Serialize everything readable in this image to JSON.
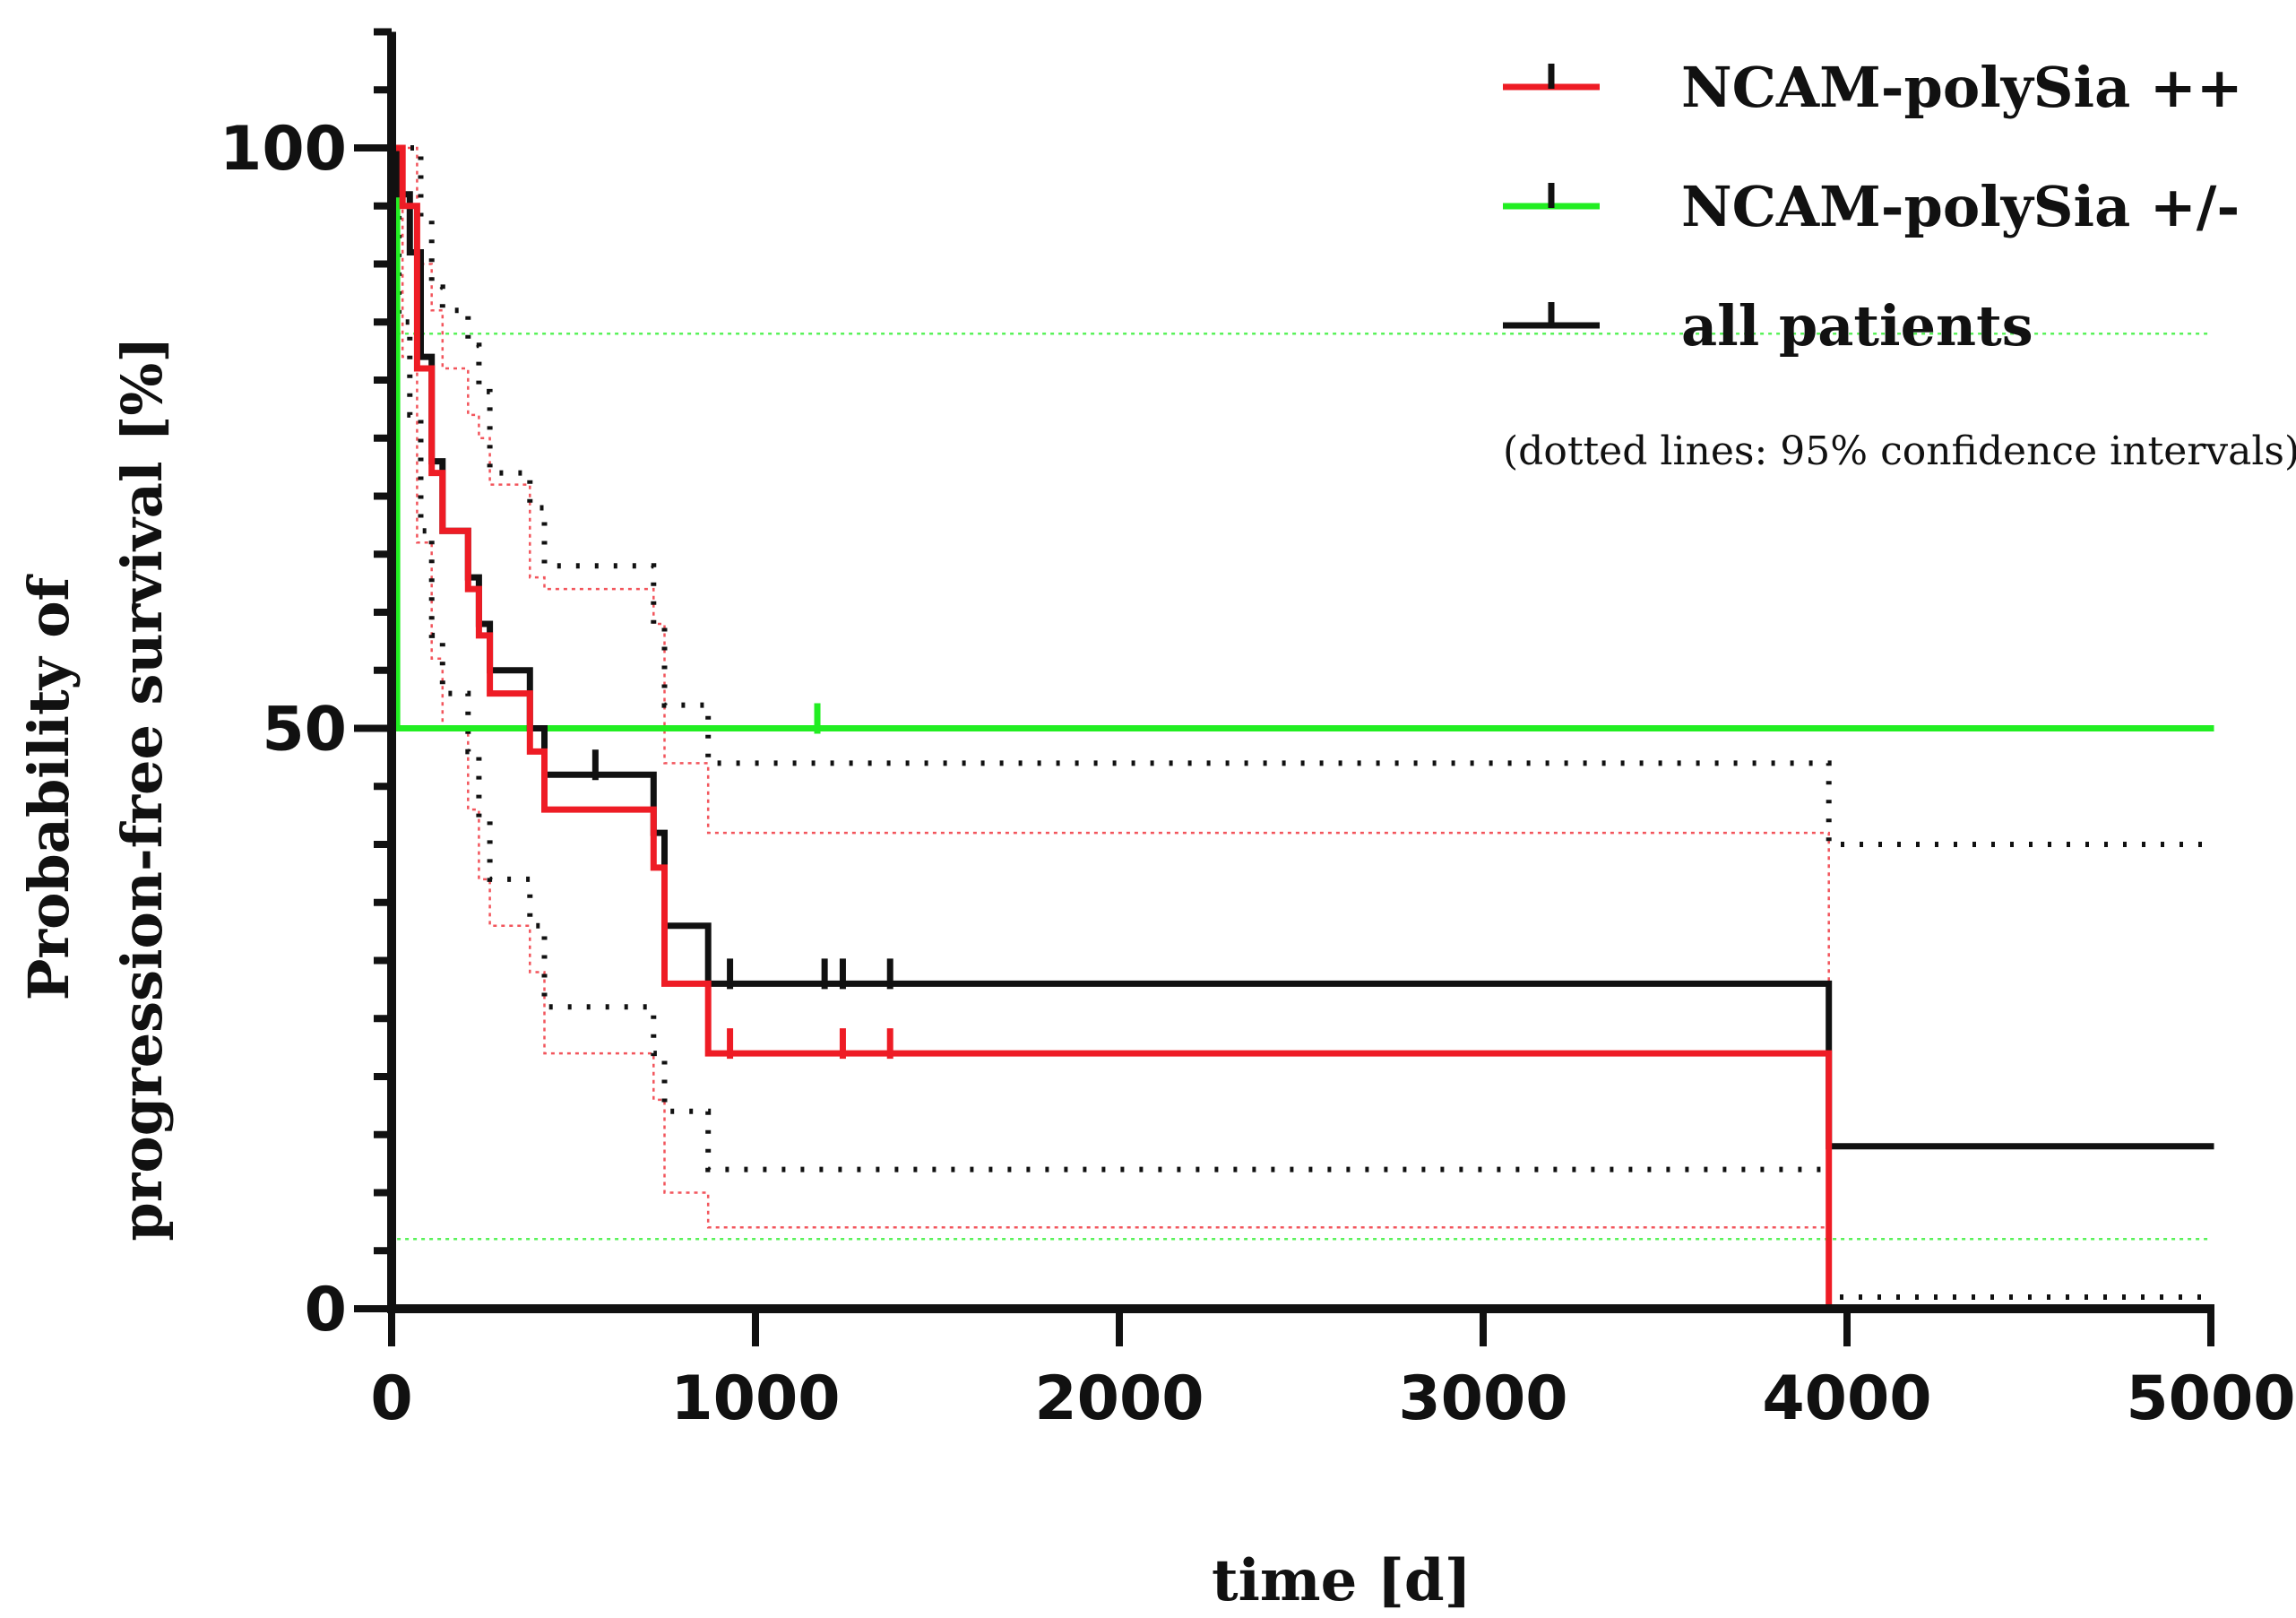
{
  "chart_data": {
    "type": "line",
    "subtype": "kaplan-meier step plot",
    "xlabel": "time [d]",
    "ylabel_line1": "Probability of",
    "ylabel_line2": "progression-free survival [%]",
    "xlim": [
      0,
      5000
    ],
    "ylim": [
      0,
      110
    ],
    "x_ticks": [
      0,
      1000,
      2000,
      3000,
      4000,
      5000
    ],
    "y_ticks": [
      0,
      50,
      100
    ],
    "y_minor_step": 5,
    "legend_position": "top-right",
    "legend_note": "(dotted lines: 95% confidence intervals)",
    "colors": {
      "ncam_pp": "#ee1c25",
      "ncam_pm": "#22ee22",
      "all": "#111111"
    },
    "series": [
      {
        "name": "NCAM-polySia ++",
        "color_key": "ncam_pp",
        "steps": [
          [
            0,
            100
          ],
          [
            30,
            95
          ],
          [
            70,
            81
          ],
          [
            110,
            72
          ],
          [
            140,
            67
          ],
          [
            210,
            62
          ],
          [
            240,
            58
          ],
          [
            270,
            53
          ],
          [
            380,
            48
          ],
          [
            420,
            43
          ],
          [
            720,
            38
          ],
          [
            750,
            28
          ],
          [
            870,
            22
          ],
          [
            3950,
            0
          ],
          [
            3980,
            0
          ]
        ],
        "censors": [
          [
            930,
            22
          ],
          [
            1240,
            22
          ],
          [
            1370,
            22
          ]
        ],
        "ci_lower": [
          [
            0,
            100
          ],
          [
            30,
            82
          ],
          [
            70,
            66
          ],
          [
            110,
            56
          ],
          [
            140,
            50
          ],
          [
            210,
            43
          ],
          [
            240,
            37
          ],
          [
            270,
            33
          ],
          [
            380,
            29
          ],
          [
            420,
            22
          ],
          [
            720,
            18
          ],
          [
            750,
            10
          ],
          [
            870,
            7
          ],
          [
            3950,
            0
          ],
          [
            3980,
            0
          ]
        ],
        "ci_upper": [
          [
            0,
            100
          ],
          [
            30,
            100
          ],
          [
            70,
            90
          ],
          [
            110,
            86
          ],
          [
            140,
            81
          ],
          [
            210,
            77
          ],
          [
            240,
            75
          ],
          [
            270,
            71
          ],
          [
            380,
            63
          ],
          [
            420,
            62
          ],
          [
            720,
            59
          ],
          [
            750,
            47
          ],
          [
            870,
            41
          ],
          [
            3950,
            0
          ],
          [
            3980,
            0
          ]
        ]
      },
      {
        "name": "NCAM-polySia +/-",
        "color_key": "ncam_pm",
        "steps": [
          [
            0,
            100
          ],
          [
            15,
            50
          ],
          [
            5000,
            50
          ]
        ],
        "censors": [
          [
            1170,
            50
          ]
        ],
        "ci_lower": [
          [
            15,
            6
          ],
          [
            5000,
            6
          ]
        ],
        "ci_upper": [
          [
            15,
            84
          ],
          [
            5000,
            84
          ]
        ]
      },
      {
        "name": "all patients",
        "color_key": "all",
        "steps": [
          [
            0,
            100
          ],
          [
            20,
            96
          ],
          [
            50,
            91
          ],
          [
            80,
            82
          ],
          [
            110,
            73
          ],
          [
            140,
            67
          ],
          [
            210,
            63
          ],
          [
            240,
            59
          ],
          [
            270,
            55
          ],
          [
            380,
            50
          ],
          [
            420,
            46
          ],
          [
            720,
            41
          ],
          [
            750,
            33
          ],
          [
            870,
            28
          ],
          [
            3950,
            14
          ],
          [
            5000,
            14
          ]
        ],
        "censors": [
          [
            560,
            46
          ],
          [
            930,
            28
          ],
          [
            1190,
            28
          ],
          [
            1240,
            28
          ],
          [
            1370,
            28
          ]
        ],
        "ci_lower": [
          [
            0,
            100
          ],
          [
            20,
            85
          ],
          [
            50,
            77
          ],
          [
            80,
            67
          ],
          [
            110,
            58
          ],
          [
            140,
            53
          ],
          [
            210,
            48
          ],
          [
            240,
            42
          ],
          [
            270,
            37
          ],
          [
            380,
            33
          ],
          [
            420,
            26
          ],
          [
            720,
            22
          ],
          [
            750,
            17
          ],
          [
            870,
            12
          ],
          [
            3950,
            1
          ],
          [
            5000,
            1
          ]
        ],
        "ci_upper": [
          [
            0,
            100
          ],
          [
            20,
            100
          ],
          [
            50,
            100
          ],
          [
            80,
            94
          ],
          [
            110,
            88
          ],
          [
            140,
            86
          ],
          [
            210,
            83
          ],
          [
            240,
            79
          ],
          [
            270,
            72
          ],
          [
            380,
            69
          ],
          [
            420,
            64
          ],
          [
            720,
            59
          ],
          [
            750,
            52
          ],
          [
            870,
            47
          ],
          [
            3950,
            40
          ],
          [
            5000,
            40
          ]
        ]
      }
    ]
  }
}
